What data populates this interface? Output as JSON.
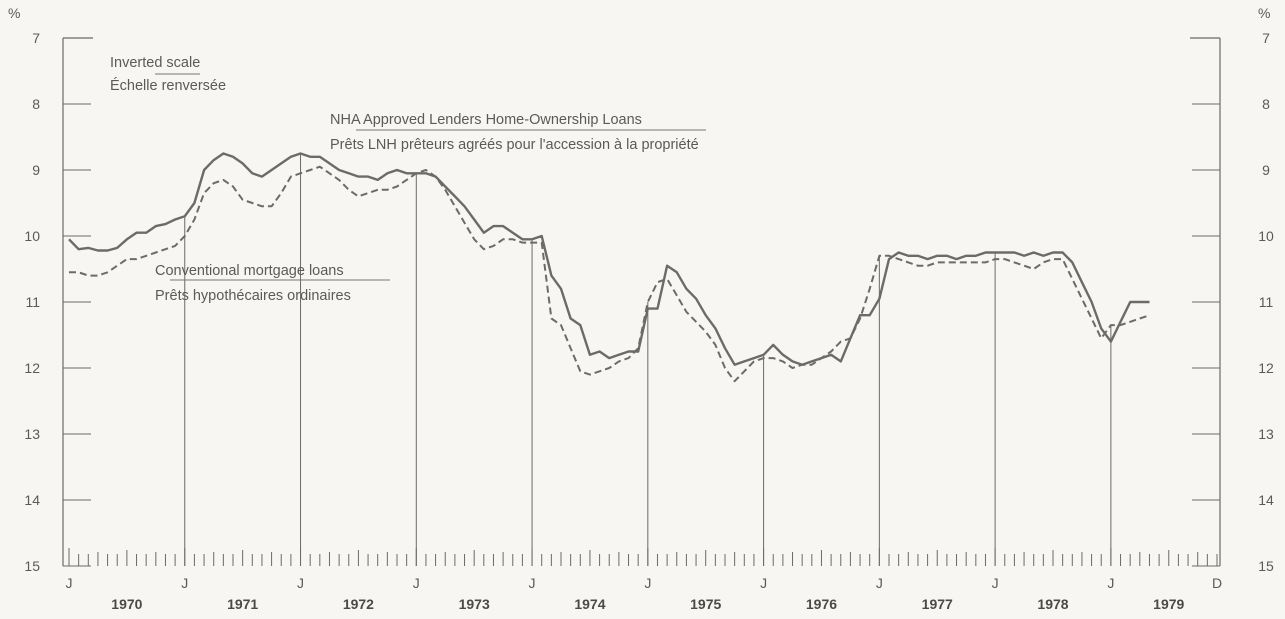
{
  "chart_data": {
    "type": "line",
    "inverted_y": true,
    "ylim": [
      7,
      15
    ],
    "y_ticks": [
      "7",
      "8",
      "9",
      "10",
      "11",
      "12",
      "13",
      "14",
      "15"
    ],
    "y_unit_left": "%",
    "y_unit_right": "%",
    "x_month_labels": [
      "J",
      "J",
      "J",
      "J",
      "J",
      "J",
      "J",
      "J",
      "J",
      "J",
      "D"
    ],
    "x_years": [
      "1970",
      "1971",
      "1972",
      "1973",
      "1974",
      "1975",
      "1976",
      "1977",
      "1978",
      "1979"
    ],
    "annotations": {
      "scale_en": "Inverted scale",
      "scale_fr": "Échelle renversée",
      "nha_en": "NHA Approved Lenders Home-Ownership Loans",
      "nha_fr": "Prêts LNH prêteurs agréés pour l'accession à la propriété",
      "conv_en": "Conventional mortgage loans",
      "conv_fr": "Prêts hypothécaires ordinaires"
    },
    "x": [
      "1970-01",
      "1970-02",
      "1970-03",
      "1970-04",
      "1970-05",
      "1970-06",
      "1970-07",
      "1970-08",
      "1970-09",
      "1970-10",
      "1970-11",
      "1970-12",
      "1971-01",
      "1971-02",
      "1971-03",
      "1971-04",
      "1971-05",
      "1971-06",
      "1971-07",
      "1971-08",
      "1971-09",
      "1971-10",
      "1971-11",
      "1971-12",
      "1972-01",
      "1972-02",
      "1972-03",
      "1972-04",
      "1972-05",
      "1972-06",
      "1972-07",
      "1972-08",
      "1972-09",
      "1972-10",
      "1972-11",
      "1972-12",
      "1973-01",
      "1973-02",
      "1973-03",
      "1973-04",
      "1973-05",
      "1973-06",
      "1973-07",
      "1973-08",
      "1973-09",
      "1973-10",
      "1973-11",
      "1973-12",
      "1974-01",
      "1974-02",
      "1974-03",
      "1974-04",
      "1974-05",
      "1974-06",
      "1974-07",
      "1974-08",
      "1974-09",
      "1974-10",
      "1974-11",
      "1974-12",
      "1975-01",
      "1975-02",
      "1975-03",
      "1975-04",
      "1975-05",
      "1975-06",
      "1975-07",
      "1975-08",
      "1975-09",
      "1975-10",
      "1975-11",
      "1975-12",
      "1976-01",
      "1976-02",
      "1976-03",
      "1976-04",
      "1976-05",
      "1976-06",
      "1976-07",
      "1976-08",
      "1976-09",
      "1976-10",
      "1976-11",
      "1976-12",
      "1977-01",
      "1977-02",
      "1977-03",
      "1977-04",
      "1977-05",
      "1977-06",
      "1977-07",
      "1977-08",
      "1977-09",
      "1977-10",
      "1977-11",
      "1977-12",
      "1978-01",
      "1978-02",
      "1978-03",
      "1978-04",
      "1978-05",
      "1978-06",
      "1978-07",
      "1978-08",
      "1978-09",
      "1978-10",
      "1978-11",
      "1978-12",
      "1979-01",
      "1979-02",
      "1979-03",
      "1979-04",
      "1979-05"
    ],
    "series": [
      {
        "name": "NHA Approved Lenders Home-Ownership Loans",
        "style": "solid",
        "values": [
          10.05,
          10.2,
          10.18,
          10.22,
          10.22,
          10.18,
          10.05,
          9.95,
          9.95,
          9.85,
          9.82,
          9.75,
          9.7,
          9.5,
          9.0,
          8.85,
          8.75,
          8.8,
          8.9,
          9.05,
          9.1,
          9.0,
          8.9,
          8.8,
          8.75,
          8.8,
          8.8,
          8.9,
          9.0,
          9.05,
          9.1,
          9.1,
          9.15,
          9.05,
          9.0,
          9.05,
          9.05,
          9.05,
          9.1,
          9.25,
          9.4,
          9.55,
          9.75,
          9.95,
          9.85,
          9.85,
          9.95,
          10.05,
          10.05,
          10.0,
          10.6,
          10.8,
          11.25,
          11.35,
          11.8,
          11.75,
          11.85,
          11.8,
          11.75,
          11.75,
          11.1,
          11.1,
          10.45,
          10.55,
          10.8,
          10.95,
          11.2,
          11.4,
          11.7,
          11.95,
          11.9,
          11.85,
          11.8,
          11.65,
          11.8,
          11.9,
          11.95,
          11.9,
          11.85,
          11.8,
          11.9,
          11.55,
          11.2,
          11.2,
          10.95,
          10.35,
          10.25,
          10.3,
          10.3,
          10.35,
          10.3,
          10.3,
          10.35,
          10.3,
          10.3,
          10.25,
          10.25,
          10.25,
          10.25,
          10.3,
          10.25,
          10.3,
          10.25,
          10.25,
          10.4,
          10.7,
          11.0,
          11.4,
          11.6,
          11.3,
          11.0,
          11.0,
          11.0
        ]
      },
      {
        "name": "Conventional mortgage loans",
        "style": "dashed",
        "values": [
          10.55,
          10.55,
          10.6,
          10.6,
          10.55,
          10.45,
          10.35,
          10.35,
          10.3,
          10.25,
          10.2,
          10.15,
          10.0,
          9.75,
          9.35,
          9.2,
          9.15,
          9.25,
          9.45,
          9.5,
          9.55,
          9.55,
          9.35,
          9.1,
          9.05,
          9.0,
          8.95,
          9.05,
          9.15,
          9.3,
          9.4,
          9.35,
          9.3,
          9.3,
          9.25,
          9.15,
          9.05,
          9.0,
          9.1,
          9.3,
          9.55,
          9.8,
          10.05,
          10.2,
          10.15,
          10.05,
          10.05,
          10.1,
          10.1,
          10.1,
          11.25,
          11.35,
          11.7,
          12.05,
          12.1,
          12.05,
          12.0,
          11.9,
          11.85,
          11.7,
          11.0,
          10.7,
          10.65,
          10.9,
          11.15,
          11.3,
          11.45,
          11.65,
          12.0,
          12.2,
          12.05,
          11.9,
          11.85,
          11.85,
          11.9,
          12.0,
          11.95,
          11.95,
          11.85,
          11.75,
          11.6,
          11.55,
          11.25,
          10.8,
          10.3,
          10.3,
          10.35,
          10.4,
          10.45,
          10.45,
          10.4,
          10.4,
          10.4,
          10.4,
          10.4,
          10.4,
          10.35,
          10.35,
          10.4,
          10.45,
          10.5,
          10.4,
          10.35,
          10.35,
          10.65,
          10.95,
          11.25,
          11.55,
          11.35,
          11.35,
          11.3,
          11.25,
          11.2
        ]
      }
    ]
  }
}
